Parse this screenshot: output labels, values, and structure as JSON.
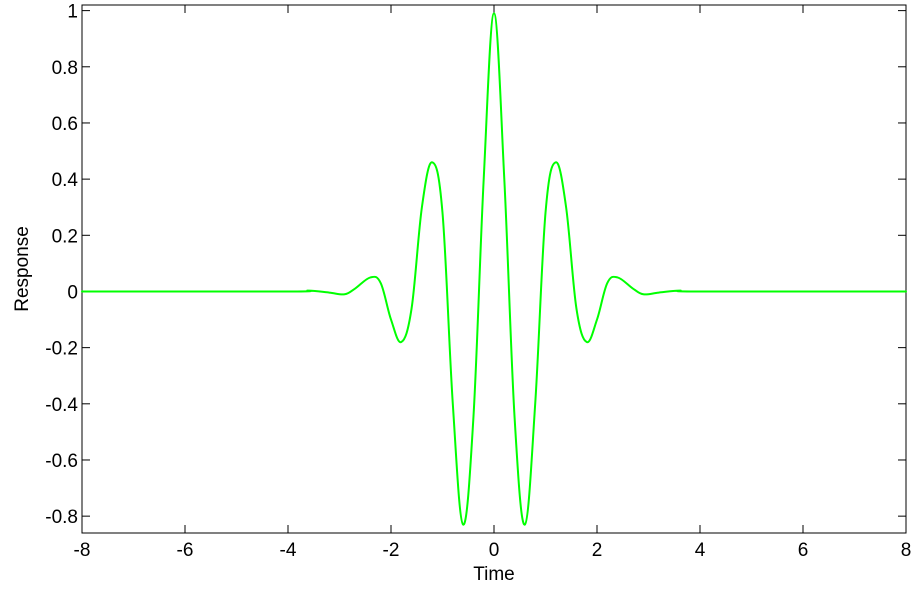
{
  "chart_data": {
    "type": "line",
    "title": "",
    "xlabel": "Time",
    "ylabel": "Response",
    "xlim": [
      -8,
      8
    ],
    "ylim": [
      -0.86,
      1.02
    ],
    "x_ticks": [
      -8,
      -6,
      -4,
      -2,
      0,
      2,
      4,
      6,
      8
    ],
    "x_tick_labels": [
      "-8",
      "-6",
      "-4",
      "-2",
      "0",
      "2",
      "4",
      "6",
      "8"
    ],
    "y_ticks": [
      -0.8,
      -0.6,
      -0.4,
      -0.2,
      0,
      0.2,
      0.4,
      0.6,
      0.8,
      1
    ],
    "y_tick_labels": [
      "-0.8",
      "-0.6",
      "-0.4",
      "-0.2",
      "0",
      "0.2",
      "0.4",
      "0.6",
      "0.8",
      "1"
    ],
    "grid": false,
    "legend": "none",
    "series": [
      {
        "color": "#00ff00",
        "x": [
          -8,
          -4,
          -3.6,
          -3.2,
          -2.9,
          -2.7,
          -2.4,
          -2.2,
          -2.0,
          -1.8,
          -1.6,
          -1.4,
          -1.2,
          -1.0,
          -0.8,
          -0.6,
          -0.4,
          -0.2,
          0,
          0.2,
          0.4,
          0.6,
          0.8,
          1.0,
          1.2,
          1.4,
          1.6,
          1.8,
          2.0,
          2.2,
          2.4,
          2.7,
          2.9,
          3.2,
          3.6,
          4,
          8
        ],
        "y": [
          0,
          0,
          0.003,
          -0.004,
          -0.01,
          0.01,
          0.05,
          0.03,
          -0.1,
          -0.18,
          -0.06,
          0.3,
          0.46,
          0.28,
          -0.4,
          -0.83,
          -0.45,
          0.4,
          0.99,
          0.4,
          -0.45,
          -0.83,
          -0.4,
          0.28,
          0.46,
          0.3,
          -0.06,
          -0.18,
          -0.1,
          0.03,
          0.05,
          0.01,
          -0.01,
          -0.004,
          0.003,
          0,
          0
        ]
      }
    ]
  }
}
